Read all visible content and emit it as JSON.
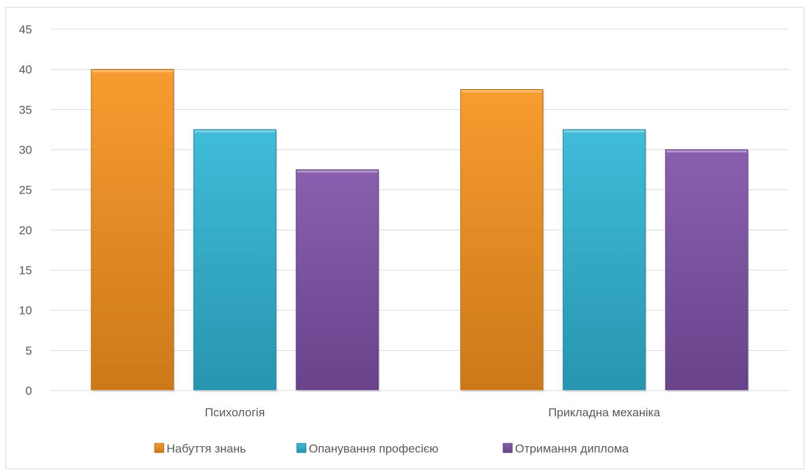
{
  "chart_data": {
    "type": "bar",
    "categories": [
      "Психологія",
      "Прикладна механіка"
    ],
    "series": [
      {
        "name": "Набуття знань",
        "values": [
          40,
          37.5
        ],
        "color": "#f7931e"
      },
      {
        "name": "Опанування професією",
        "values": [
          32.5,
          32.5
        ],
        "color": "#2fb6d6"
      },
      {
        "name": "Отримання диплома",
        "values": [
          27.5,
          30
        ],
        "color": "#7f52a8"
      }
    ],
    "ylim": [
      0,
      45
    ],
    "yticks": [
      0,
      5,
      10,
      15,
      20,
      25,
      30,
      35,
      40,
      45
    ],
    "grid": true,
    "legend_position": "bottom"
  }
}
